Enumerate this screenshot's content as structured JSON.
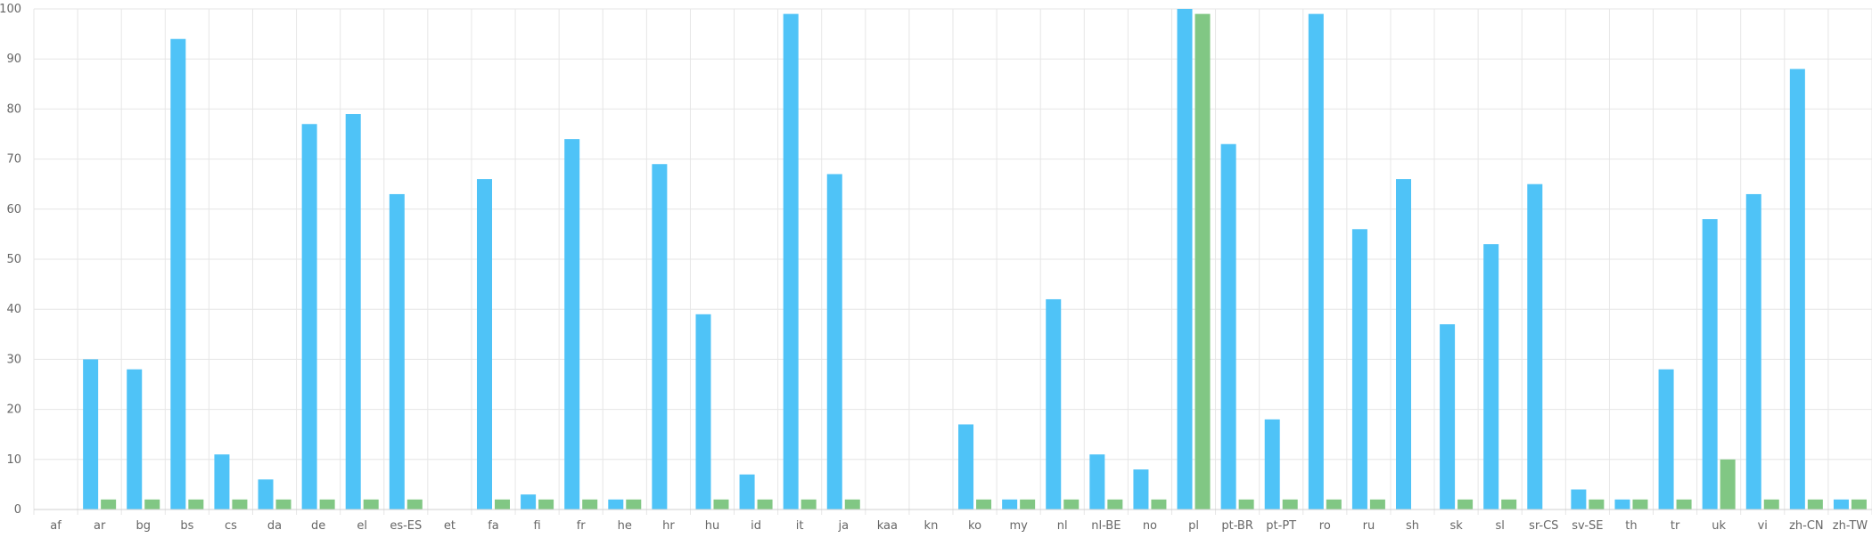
{
  "chart_data": {
    "type": "bar",
    "categories": [
      "af",
      "ar",
      "bg",
      "bs",
      "cs",
      "da",
      "de",
      "el",
      "es-ES",
      "et",
      "fa",
      "fi",
      "fr",
      "he",
      "hr",
      "hu",
      "id",
      "it",
      "ja",
      "kaa",
      "kn",
      "ko",
      "my",
      "nl",
      "nl-BE",
      "no",
      "pl",
      "pt-BR",
      "pt-PT",
      "ro",
      "ru",
      "sh",
      "sk",
      "sl",
      "sr-CS",
      "sv-SE",
      "th",
      "tr",
      "uk",
      "vi",
      "zh-CN",
      "zh-TW"
    ],
    "series": [
      {
        "color": "#4fc3f7",
        "values": [
          0,
          30,
          28,
          94,
          11,
          6,
          77,
          79,
          63,
          0,
          66,
          3,
          74,
          2,
          69,
          39,
          7,
          99,
          67,
          0,
          0,
          17,
          2,
          42,
          11,
          8,
          100,
          73,
          18,
          99,
          56,
          66,
          37,
          53,
          65,
          4,
          2,
          28,
          58,
          63,
          88,
          2
        ]
      },
      {
        "color": "#81c784",
        "values": [
          0,
          2,
          2,
          2,
          2,
          2,
          2,
          2,
          2,
          0,
          2,
          2,
          2,
          2,
          0,
          2,
          2,
          2,
          2,
          0,
          0,
          2,
          2,
          2,
          2,
          2,
          99,
          2,
          2,
          2,
          2,
          0,
          2,
          2,
          0,
          2,
          2,
          2,
          10,
          2,
          2,
          2
        ]
      }
    ],
    "ylim": [
      0,
      100
    ],
    "yticks": [
      0,
      10,
      20,
      30,
      40,
      50,
      60,
      70,
      80,
      90,
      100
    ],
    "grid": true,
    "title": "",
    "xlabel": "",
    "ylabel": ""
  }
}
